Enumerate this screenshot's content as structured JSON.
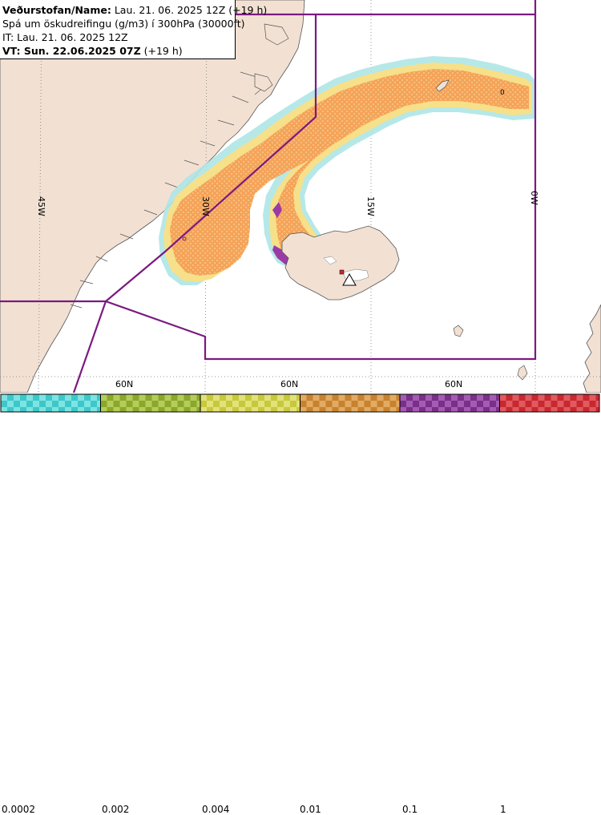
{
  "infobox": {
    "line1_label": "Veðurstofan/Name:",
    "line1_value": " Lau. 21. 06. 2025 12Z (+19 h)",
    "line2": "Spá um öskudreifingu (g/m3) í 300hPa (30000ft)",
    "line3": "IT: Lau. 21. 06. 2025 12Z",
    "line4_label": "VT: Sun. 22.06.2025 07Z",
    "line4_value": " (+19 h)"
  },
  "map": {
    "lon_labels": [
      "45W",
      "30W",
      "15W",
      "0W"
    ],
    "lat_labels": [
      "60N",
      "60N",
      "60N"
    ],
    "contour_label": "0"
  },
  "legend": {
    "ticks": [
      "0.0002",
      "0.002",
      "0.004",
      "0.01",
      "0.1",
      "1"
    ],
    "bins": [
      {
        "color": "#3cc8c8",
        "light": "#7fe3e3"
      },
      {
        "color": "#8aa82a",
        "light": "#b6cc5a"
      },
      {
        "color": "#c8c83c",
        "light": "#e2e27a"
      },
      {
        "color": "#c8822e",
        "light": "#e2aa62"
      },
      {
        "color": "#7a2f8a",
        "light": "#a35cb2"
      },
      {
        "color": "#c8282e",
        "light": "#e05a60"
      }
    ]
  },
  "colors": {
    "land": "#f2e1d3",
    "sea": "#ffffff",
    "fir_boundary": "#7a1a80",
    "ash_low": "#f5a35a",
    "ash_fringe": "#f6e08a",
    "ash_edge": "#aee6e6",
    "ash_high": "#9b3aa6"
  }
}
